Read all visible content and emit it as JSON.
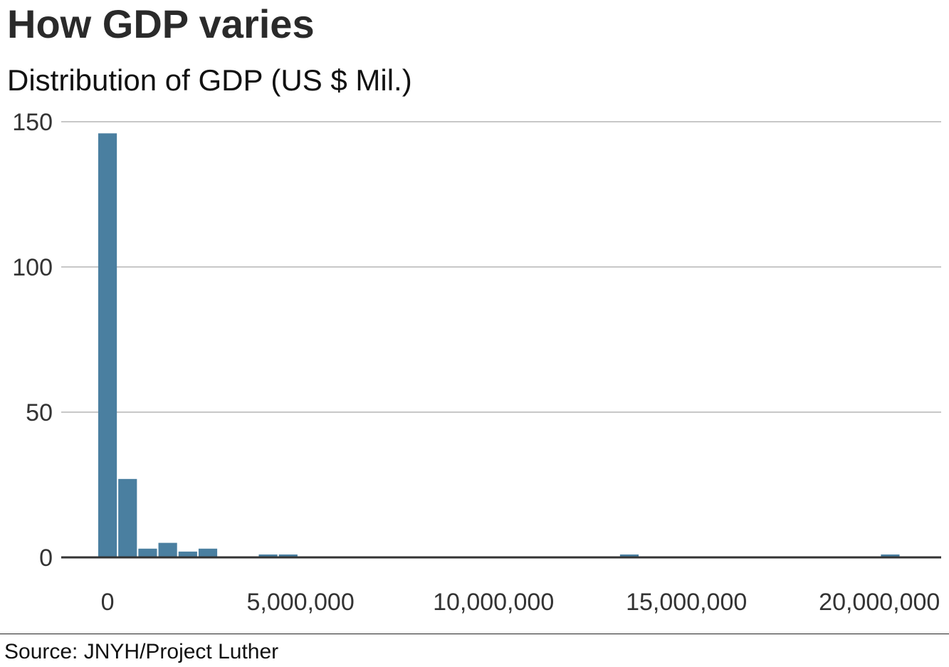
{
  "header": {
    "title": "How GDP varies",
    "subtitle": "Distribution of GDP (US $ Mil.)"
  },
  "footer": {
    "source": "Source: JNYH/Project Luther"
  },
  "chart_data": {
    "type": "bar",
    "title": "How GDP varies",
    "subtitle": "Distribution of GDP (US $ Mil.)",
    "xlabel": "",
    "ylabel": "",
    "bin_width": 520000,
    "bins": [
      {
        "start": -260000,
        "count": 146
      },
      {
        "start": 260000,
        "count": 27
      },
      {
        "start": 780000,
        "count": 3
      },
      {
        "start": 1300000,
        "count": 5
      },
      {
        "start": 1820000,
        "count": 2
      },
      {
        "start": 2340000,
        "count": 3
      },
      {
        "start": 2860000,
        "count": 0
      },
      {
        "start": 3380000,
        "count": 0
      },
      {
        "start": 3900000,
        "count": 1
      },
      {
        "start": 4420000,
        "count": 1
      },
      {
        "start": 13260000,
        "count": 1
      },
      {
        "start": 20020000,
        "count": 1
      }
    ],
    "xlim": [
      -1200000,
      21600000
    ],
    "ylim": [
      0,
      150
    ],
    "x_ticks": [
      0,
      5000000,
      10000000,
      15000000,
      20000000
    ],
    "x_tick_labels": [
      "0",
      "5,000,000",
      "10,000,000",
      "15,000,000",
      "20,000,000"
    ],
    "y_ticks": [
      0,
      50,
      100,
      150
    ],
    "y_tick_labels": [
      "0",
      "50",
      "100",
      "150"
    ],
    "grid": true,
    "legend": "none",
    "bar_color": "#4a7fa0",
    "grid_color": "#c8c8c8",
    "axis_color": "#333333"
  }
}
